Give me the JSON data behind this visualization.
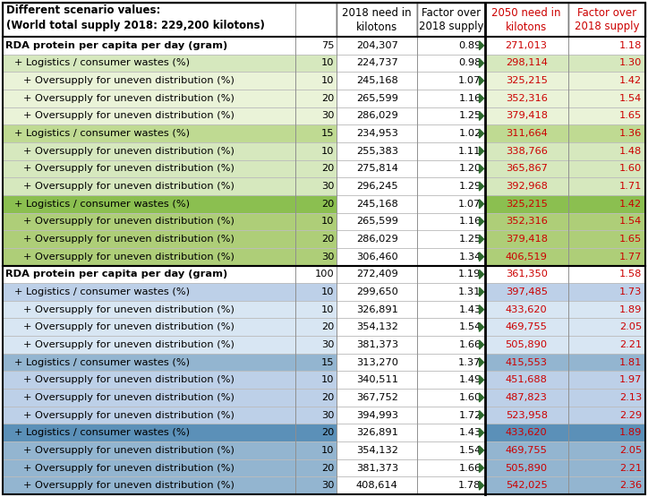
{
  "rows": [
    {
      "label": "RDA protein per capita per day (gram)",
      "indent": 0,
      "val": "75",
      "n2018": "204,307",
      "f2018": "0.89",
      "n2050": "271,013",
      "f2050": "1.18",
      "bg": "#FFFFFF",
      "bold": true,
      "section_top": true
    },
    {
      "label": "+ Logistics / consumer wastes (%)",
      "indent": 1,
      "val": "10",
      "n2018": "224,737",
      "f2018": "0.98",
      "n2050": "298,114",
      "f2050": "1.30",
      "bg": "#D6E8BE",
      "bold": false,
      "section_top": false
    },
    {
      "label": "+ Oversupply for uneven distribution (%)",
      "indent": 2,
      "val": "10",
      "n2018": "245,168",
      "f2018": "1.07",
      "n2050": "325,215",
      "f2050": "1.42",
      "bg": "#EAF3D8",
      "bold": false,
      "section_top": false
    },
    {
      "label": "+ Oversupply for uneven distribution (%)",
      "indent": 2,
      "val": "20",
      "n2018": "265,599",
      "f2018": "1.16",
      "n2050": "352,316",
      "f2050": "1.54",
      "bg": "#EAF3D8",
      "bold": false,
      "section_top": false
    },
    {
      "label": "+ Oversupply for uneven distribution (%)",
      "indent": 2,
      "val": "30",
      "n2018": "286,029",
      "f2018": "1.25",
      "n2050": "379,418",
      "f2050": "1.65",
      "bg": "#EAF3D8",
      "bold": false,
      "section_top": false
    },
    {
      "label": "+ Logistics / consumer wastes (%)",
      "indent": 1,
      "val": "15",
      "n2018": "234,953",
      "f2018": "1.02",
      "n2050": "311,664",
      "f2050": "1.36",
      "bg": "#BFDA92",
      "bold": false,
      "section_top": false
    },
    {
      "label": "+ Oversupply for uneven distribution (%)",
      "indent": 2,
      "val": "10",
      "n2018": "255,383",
      "f2018": "1.11",
      "n2050": "338,766",
      "f2050": "1.48",
      "bg": "#D6E8BE",
      "bold": false,
      "section_top": false
    },
    {
      "label": "+ Oversupply for uneven distribution (%)",
      "indent": 2,
      "val": "20",
      "n2018": "275,814",
      "f2018": "1.20",
      "n2050": "365,867",
      "f2050": "1.60",
      "bg": "#D6E8BE",
      "bold": false,
      "section_top": false
    },
    {
      "label": "+ Oversupply for uneven distribution (%)",
      "indent": 2,
      "val": "30",
      "n2018": "296,245",
      "f2018": "1.29",
      "n2050": "392,968",
      "f2050": "1.71",
      "bg": "#D6E8BE",
      "bold": false,
      "section_top": false
    },
    {
      "label": "+ Logistics / consumer wastes (%)",
      "indent": 1,
      "val": "20",
      "n2018": "245,168",
      "f2018": "1.07",
      "n2050": "325,215",
      "f2050": "1.42",
      "bg": "#8BBF50",
      "bold": false,
      "section_top": false
    },
    {
      "label": "+ Oversupply for uneven distribution (%)",
      "indent": 2,
      "val": "10",
      "n2018": "265,599",
      "f2018": "1.16",
      "n2050": "352,316",
      "f2050": "1.54",
      "bg": "#AECE78",
      "bold": false,
      "section_top": false
    },
    {
      "label": "+ Oversupply for uneven distribution (%)",
      "indent": 2,
      "val": "20",
      "n2018": "286,029",
      "f2018": "1.25",
      "n2050": "379,418",
      "f2050": "1.65",
      "bg": "#AECE78",
      "bold": false,
      "section_top": false
    },
    {
      "label": "+ Oversupply for uneven distribution (%)",
      "indent": 2,
      "val": "30",
      "n2018": "306,460",
      "f2018": "1.34",
      "n2050": "406,519",
      "f2050": "1.77",
      "bg": "#AECE78",
      "bold": false,
      "section_top": false
    },
    {
      "label": "RDA protein per capita per day (gram)",
      "indent": 0,
      "val": "100",
      "n2018": "272,409",
      "f2018": "1.19",
      "n2050": "361,350",
      "f2050": "1.58",
      "bg": "#FFFFFF",
      "bold": true,
      "section_top": true
    },
    {
      "label": "+ Logistics / consumer wastes (%)",
      "indent": 1,
      "val": "10",
      "n2018": "299,650",
      "f2018": "1.31",
      "n2050": "397,485",
      "f2050": "1.73",
      "bg": "#BDD0E8",
      "bold": false,
      "section_top": false
    },
    {
      "label": "+ Oversupply for uneven distribution (%)",
      "indent": 2,
      "val": "10",
      "n2018": "326,891",
      "f2018": "1.43",
      "n2050": "433,620",
      "f2050": "1.89",
      "bg": "#D8E6F3",
      "bold": false,
      "section_top": false
    },
    {
      "label": "+ Oversupply for uneven distribution (%)",
      "indent": 2,
      "val": "20",
      "n2018": "354,132",
      "f2018": "1.54",
      "n2050": "469,755",
      "f2050": "2.05",
      "bg": "#D8E6F3",
      "bold": false,
      "section_top": false
    },
    {
      "label": "+ Oversupply for uneven distribution (%)",
      "indent": 2,
      "val": "30",
      "n2018": "381,373",
      "f2018": "1.66",
      "n2050": "505,890",
      "f2050": "2.21",
      "bg": "#D8E6F3",
      "bold": false,
      "section_top": false
    },
    {
      "label": "+ Logistics / consumer wastes (%)",
      "indent": 1,
      "val": "15",
      "n2018": "313,270",
      "f2018": "1.37",
      "n2050": "415,553",
      "f2050": "1.81",
      "bg": "#93B5D0",
      "bold": false,
      "section_top": false
    },
    {
      "label": "+ Oversupply for uneven distribution (%)",
      "indent": 2,
      "val": "10",
      "n2018": "340,511",
      "f2018": "1.49",
      "n2050": "451,688",
      "f2050": "1.97",
      "bg": "#BDD0E8",
      "bold": false,
      "section_top": false
    },
    {
      "label": "+ Oversupply for uneven distribution (%)",
      "indent": 2,
      "val": "20",
      "n2018": "367,752",
      "f2018": "1.60",
      "n2050": "487,823",
      "f2050": "2.13",
      "bg": "#BDD0E8",
      "bold": false,
      "section_top": false
    },
    {
      "label": "+ Oversupply for uneven distribution (%)",
      "indent": 2,
      "val": "30",
      "n2018": "394,993",
      "f2018": "1.72",
      "n2050": "523,958",
      "f2050": "2.29",
      "bg": "#BDD0E8",
      "bold": false,
      "section_top": false
    },
    {
      "label": "+ Logistics / consumer wastes (%)",
      "indent": 1,
      "val": "20",
      "n2018": "326,891",
      "f2018": "1.43",
      "n2050": "433,620",
      "f2050": "1.89",
      "bg": "#5B90B8",
      "bold": false,
      "section_top": false
    },
    {
      "label": "+ Oversupply for uneven distribution (%)",
      "indent": 2,
      "val": "10",
      "n2018": "354,132",
      "f2018": "1.54",
      "n2050": "469,755",
      "f2050": "2.05",
      "bg": "#93B5D0",
      "bold": false,
      "section_top": false
    },
    {
      "label": "+ Oversupply for uneven distribution (%)",
      "indent": 2,
      "val": "20",
      "n2018": "381,373",
      "f2018": "1.66",
      "n2050": "505,890",
      "f2050": "2.21",
      "bg": "#93B5D0",
      "bold": false,
      "section_top": false
    },
    {
      "label": "+ Oversupply for uneven distribution (%)",
      "indent": 2,
      "val": "30",
      "n2018": "408,614",
      "f2018": "1.78",
      "n2050": "542,025",
      "f2050": "2.36",
      "bg": "#93B5D0",
      "bold": false,
      "section_top": false
    }
  ],
  "header_text_left": "Different scenario values:\n(World total supply 2018: 229,200 kilotons)",
  "header_col2": "2018 need in\nkilotons",
  "header_col3": "Factor over\n2018 supply",
  "header_col4": "2050 need in\nkilotons",
  "header_col5": "Factor over\n2018 supply",
  "color_2050": "#CC0000",
  "color_black": "#000000",
  "color_white": "#FFFFFF",
  "fig_width": 7.24,
  "fig_height": 5.55,
  "dpi": 100
}
